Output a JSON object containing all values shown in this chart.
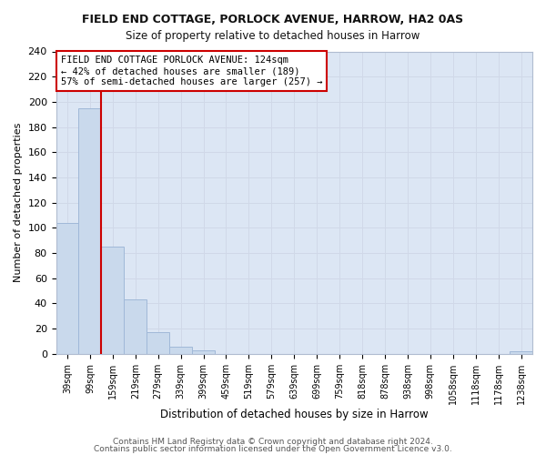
{
  "title": "FIELD END COTTAGE, PORLOCK AVENUE, HARROW, HA2 0AS",
  "subtitle": "Size of property relative to detached houses in Harrow",
  "xlabel": "Distribution of detached houses by size in Harrow",
  "ylabel": "Number of detached properties",
  "bar_labels": [
    "39sqm",
    "99sqm",
    "159sqm",
    "219sqm",
    "279sqm",
    "339sqm",
    "399sqm",
    "459sqm",
    "519sqm",
    "579sqm",
    "639sqm",
    "699sqm",
    "759sqm",
    "818sqm",
    "878sqm",
    "938sqm",
    "998sqm",
    "1058sqm",
    "1118sqm",
    "1178sqm",
    "1238sqm"
  ],
  "bar_values": [
    104,
    195,
    85,
    43,
    17,
    6,
    3,
    0,
    0,
    0,
    0,
    0,
    0,
    0,
    0,
    0,
    0,
    0,
    0,
    0,
    2
  ],
  "bar_color": "#c9d9ec",
  "bar_edge_color": "#a0b8d8",
  "grid_color": "#d0d8e8",
  "bg_color": "#dce6f4",
  "fig_bg_color": "#ffffff",
  "property_line_color": "#cc0000",
  "property_line_x": 1.5,
  "annotation_text_line1": "FIELD END COTTAGE PORLOCK AVENUE: 124sqm",
  "annotation_text_line2": "← 42% of detached houses are smaller (189)",
  "annotation_text_line3": "57% of semi-detached houses are larger (257) →",
  "annotation_box_color": "#ffffff",
  "annotation_box_edge_color": "#cc0000",
  "ylim": [
    0,
    240
  ],
  "yticks": [
    0,
    20,
    40,
    60,
    80,
    100,
    120,
    140,
    160,
    180,
    200,
    220,
    240
  ],
  "footer_line1": "Contains HM Land Registry data © Crown copyright and database right 2024.",
  "footer_line2": "Contains public sector information licensed under the Open Government Licence v3.0."
}
